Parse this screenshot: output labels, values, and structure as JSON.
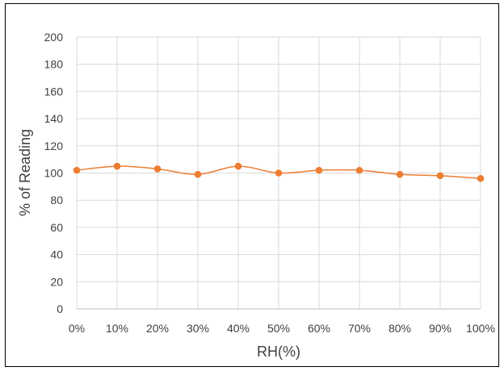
{
  "chart_data": {
    "type": "line",
    "categories": [
      "0%",
      "10%",
      "20%",
      "30%",
      "40%",
      "50%",
      "60%",
      "70%",
      "80%",
      "90%",
      "100%"
    ],
    "series": [
      {
        "values": [
          102,
          105,
          103,
          99,
          105,
          100,
          102,
          102,
          99,
          98,
          96
        ]
      }
    ],
    "xlabel": "RH(%)",
    "ylabel": "% of Reading",
    "ylim": [
      0,
      200
    ],
    "yticks": [
      "0",
      "20",
      "40",
      "60",
      "80",
      "100",
      "120",
      "140",
      "160",
      "180",
      "200"
    ],
    "grid": true,
    "legend": "none",
    "colors": {
      "series": "#ED7D31",
      "grid": "#D9D9D9",
      "axis": "#BFBFBF",
      "text": "#404040"
    }
  }
}
